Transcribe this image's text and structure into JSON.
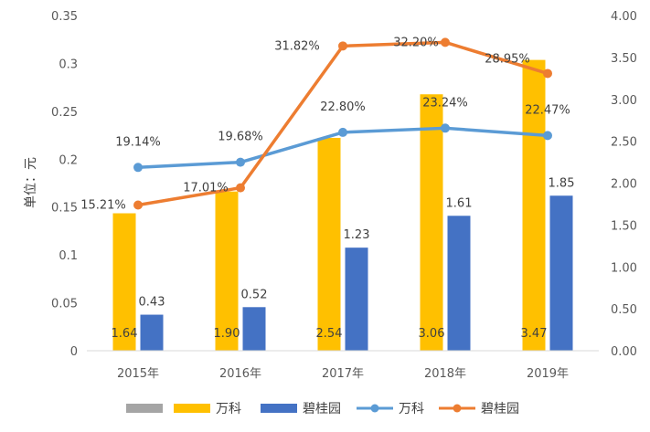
{
  "chart_data": {
    "type": "bar",
    "categories": [
      "2015年",
      "2016年",
      "2017年",
      "2018年",
      "2019年"
    ],
    "ylabel": "单位：元",
    "ylim_left": [
      0,
      0.35
    ],
    "left_ticks": [
      "0",
      "0.05",
      "0.1",
      "0.15",
      "0.2",
      "0.25",
      "0.3",
      "0.35"
    ],
    "ylim_right": [
      0,
      4.0
    ],
    "right_ticks": [
      "0.00",
      "0.50",
      "1.00",
      "1.50",
      "2.00",
      "2.50",
      "3.00",
      "3.50",
      "4.00"
    ],
    "grid": false,
    "legend_position": "bottom",
    "bar_series": [
      {
        "name": "万科",
        "color": "#FFC000",
        "values": [
          1.64,
          1.9,
          2.54,
          3.06,
          3.47
        ],
        "labels": [
          "1.64",
          "1.90",
          "2.54",
          "3.06",
          "3.47"
        ]
      },
      {
        "name": "碧桂园",
        "color": "#4472C4",
        "values": [
          0.43,
          0.52,
          1.23,
          1.61,
          1.85
        ],
        "labels": [
          "0.43",
          "0.52",
          "1.23",
          "1.61",
          "1.85"
        ]
      }
    ],
    "line_series": [
      {
        "name": "万科",
        "color": "#5B9BD5",
        "values": [
          0.1914,
          0.1968,
          0.228,
          0.2324,
          0.2247
        ],
        "labels": [
          "19.14%",
          "19.68%",
          "22.80%",
          "23.24%",
          "22.47%"
        ]
      },
      {
        "name": "碧桂园",
        "color": "#ED7D31",
        "values": [
          0.1521,
          0.1701,
          0.3182,
          0.322,
          0.2895
        ],
        "labels": [
          "15.21%",
          "17.01%",
          "31.82%",
          "32.20%",
          "28.95%"
        ]
      }
    ],
    "legend_extra_color": "#A5A5A5"
  }
}
